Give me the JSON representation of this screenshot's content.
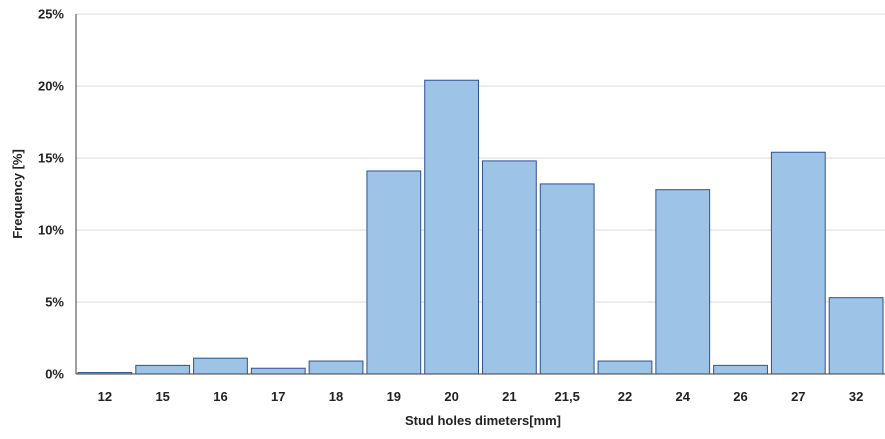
{
  "chart_data": {
    "type": "bar",
    "title": "",
    "xlabel": "Stud holes dimeters[mm]",
    "ylabel": "Frequency [%]",
    "categories": [
      "12",
      "15",
      "16",
      "17",
      "18",
      "19",
      "20",
      "21",
      "21,5",
      "22",
      "24",
      "26",
      "27",
      "32"
    ],
    "values": [
      0.1,
      0.6,
      1.1,
      0.4,
      0.9,
      14.1,
      20.4,
      14.8,
      13.2,
      0.9,
      12.8,
      0.6,
      15.4,
      5.3
    ],
    "y_unit": "%",
    "ylim": [
      0,
      25
    ],
    "y_ticks": [
      0,
      5,
      10,
      15,
      20,
      25
    ],
    "y_tick_labels": [
      "0%",
      "5%",
      "10%",
      "15%",
      "20%",
      "25%"
    ],
    "grid": true,
    "legend": "none",
    "colors": {
      "bar_fill": "#9dc3e6",
      "bar_stroke": "#2f528f",
      "grid": "#d9d9d9",
      "axis": "#404040",
      "text": "#222222"
    }
  }
}
